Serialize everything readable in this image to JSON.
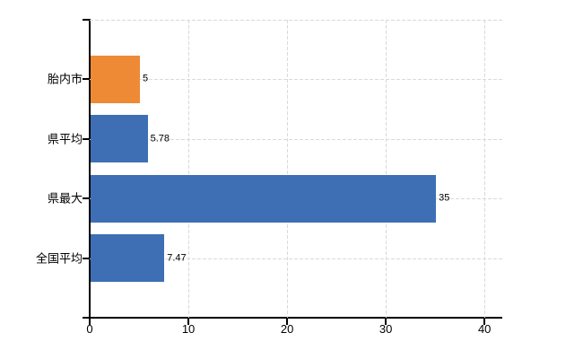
{
  "chart_data": {
    "type": "bar",
    "orientation": "horizontal",
    "title": "",
    "categories": [
      "胎内市",
      "県平均",
      "県最大",
      "全国平均"
    ],
    "values": [
      5,
      5.78,
      35,
      7.47
    ],
    "value_labels": [
      "5",
      "5.78",
      "35",
      "7.47"
    ],
    "bar_colors": [
      "#ee8a35",
      "#3e6fb4",
      "#3e6fb4",
      "#3e6fb4"
    ],
    "x_ticks": [
      0,
      10,
      20,
      30,
      40
    ],
    "x_tick_labels": [
      "0",
      "10",
      "20",
      "30",
      "40"
    ],
    "xlim": [
      0,
      41.8
    ],
    "grid": true,
    "legend": false,
    "colors": {
      "background": "#ffffff",
      "axis": "#000000",
      "gridline": "#d6dcd6",
      "text": "#000000",
      "orange_series": "#ee8a35",
      "blue_series": "#3e6fb4"
    }
  }
}
